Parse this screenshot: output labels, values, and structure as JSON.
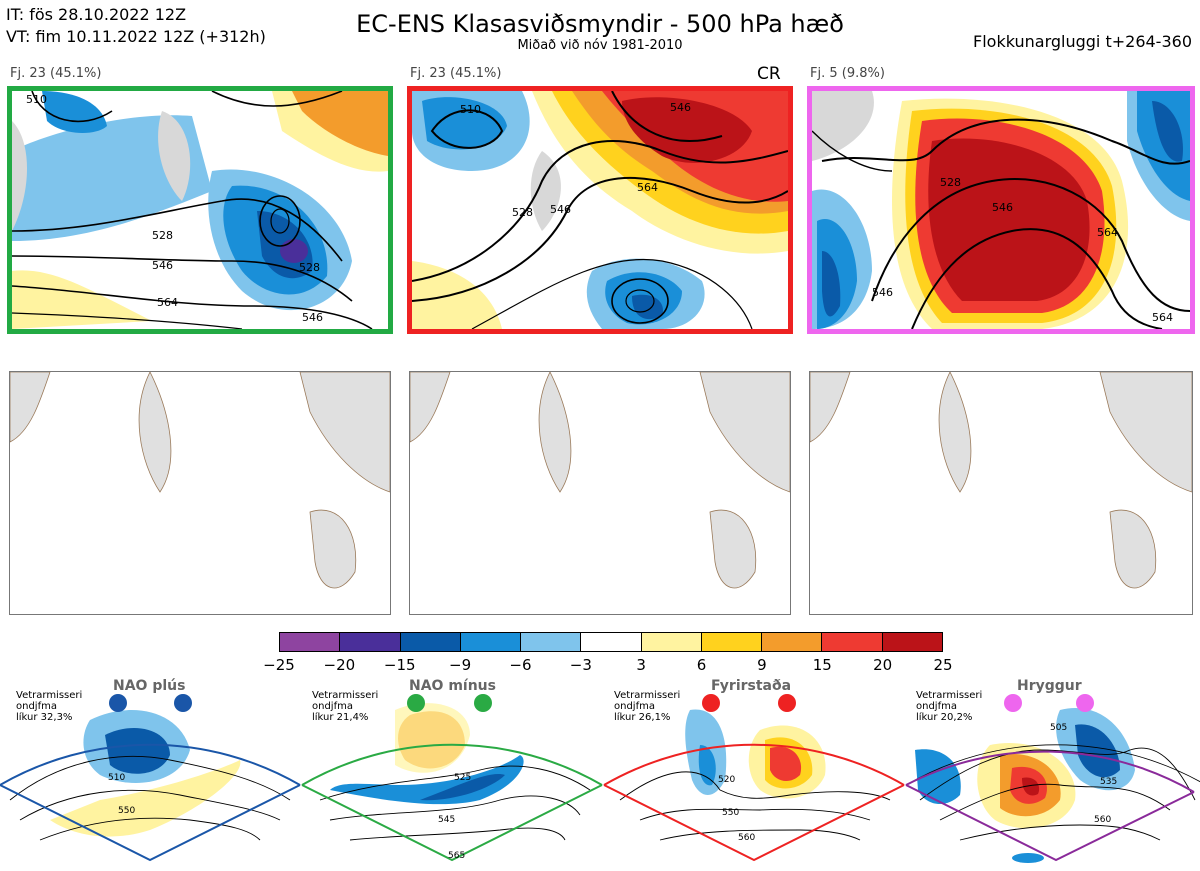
{
  "header": {
    "init_time": "IT: fös 28.10.2022 12Z",
    "valid_time": "VT: fim 10.11.2022 12Z  (+312h)",
    "title": "EC-ENS Klasasviðsmyndir - 500 hPa hæð",
    "subtitle": "Miðað við nóv 1981-2010",
    "window": "Flokkunargluggi t+264-360"
  },
  "panels": [
    {
      "label": "Fj. 23 (45.1%)",
      "border_color": "#22aa44",
      "contours": [
        "510",
        "528",
        "546",
        "564",
        "546",
        "528"
      ]
    },
    {
      "label": "Fj. 23 (45.1%)",
      "border_color": "#ee2222",
      "tag": "CR",
      "contours": [
        "510",
        "528",
        "546",
        "564",
        "546"
      ]
    },
    {
      "label": "Fj. 5 (9.8%)",
      "border_color": "#ee66ee",
      "contours": [
        "528",
        "546",
        "564",
        "546",
        "564"
      ]
    }
  ],
  "colorbar": {
    "colors": [
      "#8e44a0",
      "#4a2f9a",
      "#0a5aa8",
      "#1a8fd8",
      "#7fc4ec",
      "#ffffff",
      "#fff3a0",
      "#ffd21e",
      "#f39c2c",
      "#ee3a32",
      "#bb1318"
    ],
    "ticks": [
      "−25",
      "−20",
      "−15",
      "−9",
      "−6",
      "−3",
      "3",
      "6",
      "9",
      "15",
      "20",
      "25"
    ]
  },
  "regimes": [
    {
      "title": "NAO plús",
      "note": [
        "Vetrarmisseri",
        "ondjfma",
        "líkur 32,3%"
      ],
      "color": "#1a56a8",
      "labels": [
        "510",
        "550"
      ]
    },
    {
      "title": "NAO mínus",
      "note": [
        "Vetrarmisseri",
        "ondjfma",
        "líkur 21,4%"
      ],
      "color": "#2aaa44",
      "labels": [
        "525",
        "545",
        "565"
      ]
    },
    {
      "title": "Fyrirstaða",
      "note": [
        "Vetrarmisseri",
        "ondjfma",
        "líkur 26,1%"
      ],
      "color": "#ee2222",
      "labels": [
        "520",
        "550",
        "560"
      ]
    },
    {
      "title": "Hryggur",
      "note": [
        "Vetrarmisseri",
        "ondjfma",
        "líkur 20,2%"
      ],
      "color": "#8a2a9a",
      "labels": [
        "505",
        "535",
        "560"
      ]
    }
  ]
}
